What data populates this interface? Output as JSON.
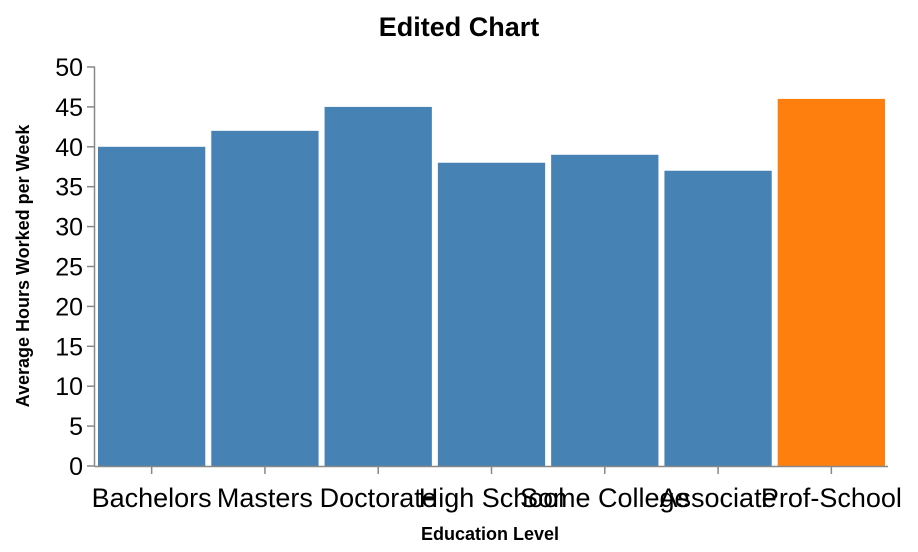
{
  "chart_data": {
    "type": "bar",
    "title": "Edited Chart",
    "xlabel": "Education Level",
    "ylabel": "Average Hours Worked per Week",
    "categories": [
      "Bachelors",
      "Masters",
      "Doctorate",
      "High School",
      "Some College",
      "Associate",
      "Prof-School"
    ],
    "values": [
      40,
      42,
      45,
      38,
      39,
      37,
      46
    ],
    "colors": [
      "#4682b4",
      "#4682b4",
      "#4682b4",
      "#4682b4",
      "#4682b4",
      "#4682b4",
      "#ff7f0e"
    ],
    "ylim": [
      0,
      50
    ],
    "yticks": [
      0,
      5,
      10,
      15,
      20,
      25,
      30,
      35,
      40,
      45,
      50
    ],
    "grid": false,
    "legend": "none"
  }
}
